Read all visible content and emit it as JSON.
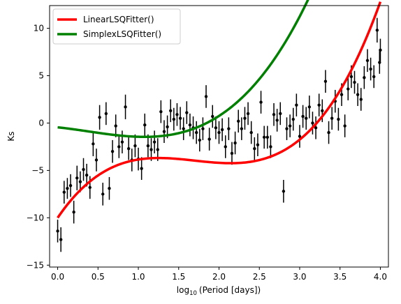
{
  "chart_data": {
    "type": "scatter",
    "xlabel_prefix": "log",
    "xlabel_sub": "10",
    "xlabel_suffix": "(Period [days])",
    "ylabel": "Ks",
    "xlim": [
      -0.1,
      4.1
    ],
    "ylim": [
      -15.2,
      12.4
    ],
    "xticks": [
      0.0,
      0.5,
      1.0,
      1.5,
      2.0,
      2.5,
      3.0,
      3.5,
      4.0
    ],
    "xtick_labels": [
      "0.0",
      "0.5",
      "1.0",
      "1.5",
      "2.0",
      "2.5",
      "3.0",
      "3.5",
      "4.0"
    ],
    "yticks": [
      -15,
      -10,
      -5,
      0,
      5,
      10
    ],
    "ytick_labels": [
      "−15",
      "−10",
      "−5",
      "0",
      "5",
      "10"
    ],
    "grid": false,
    "legend_position": "top-left",
    "points": [
      [
        0.0,
        -11.4,
        1.2
      ],
      [
        0.04,
        -12.3,
        1.3
      ],
      [
        0.08,
        -7.3,
        1.2
      ],
      [
        0.12,
        -6.9,
        1.1
      ],
      [
        0.16,
        -6.6,
        1.2
      ],
      [
        0.2,
        -9.4,
        1.2
      ],
      [
        0.24,
        -5.8,
        1.3
      ],
      [
        0.28,
        -6.2,
        1.1
      ],
      [
        0.32,
        -4.9,
        1.2
      ],
      [
        0.36,
        -5.5,
        1.2
      ],
      [
        0.4,
        -6.8,
        1.2
      ],
      [
        0.44,
        -2.2,
        1.3
      ],
      [
        0.48,
        -3.9,
        1.2
      ],
      [
        0.52,
        0.6,
        1.3
      ],
      [
        0.56,
        -7.5,
        1.2
      ],
      [
        0.6,
        1.0,
        1.2
      ],
      [
        0.64,
        -6.9,
        1.2
      ],
      [
        0.68,
        -3.0,
        1.2
      ],
      [
        0.72,
        -0.3,
        1.2
      ],
      [
        0.76,
        -2.5,
        1.2
      ],
      [
        0.8,
        -2.0,
        1.2
      ],
      [
        0.84,
        1.7,
        1.3
      ],
      [
        0.88,
        -2.7,
        1.2
      ],
      [
        0.92,
        -3.9,
        1.2
      ],
      [
        0.96,
        -2.4,
        1.2
      ],
      [
        1.0,
        -3.8,
        1.2
      ],
      [
        1.04,
        -4.8,
        1.2
      ],
      [
        1.08,
        -0.2,
        1.2
      ],
      [
        1.12,
        -2.4,
        1.2
      ],
      [
        1.16,
        -2.8,
        1.2
      ],
      [
        1.2,
        -2.0,
        1.2
      ],
      [
        1.24,
        -2.8,
        1.2
      ],
      [
        1.28,
        1.2,
        1.2
      ],
      [
        1.32,
        -0.9,
        1.2
      ],
      [
        1.36,
        -0.4,
        1.2
      ],
      [
        1.4,
        1.3,
        1.2
      ],
      [
        1.44,
        0.4,
        1.2
      ],
      [
        1.48,
        0.9,
        1.2
      ],
      [
        1.52,
        0.5,
        1.2
      ],
      [
        1.56,
        -0.6,
        1.2
      ],
      [
        1.6,
        1.1,
        1.2
      ],
      [
        1.64,
        -0.2,
        1.2
      ],
      [
        1.68,
        -0.5,
        1.2
      ],
      [
        1.72,
        -1.0,
        1.2
      ],
      [
        1.76,
        -1.8,
        1.2
      ],
      [
        1.8,
        -0.6,
        1.2
      ],
      [
        1.84,
        2.8,
        1.2
      ],
      [
        1.88,
        -1.7,
        1.2
      ],
      [
        1.92,
        0.7,
        1.2
      ],
      [
        1.96,
        -0.5,
        1.2
      ],
      [
        2.0,
        -1.0,
        1.2
      ],
      [
        2.04,
        -0.7,
        1.2
      ],
      [
        2.08,
        -2.5,
        1.2
      ],
      [
        2.12,
        -0.6,
        1.2
      ],
      [
        2.16,
        -3.2,
        1.2
      ],
      [
        2.2,
        -2.1,
        1.2
      ],
      [
        2.24,
        0.2,
        1.2
      ],
      [
        2.28,
        -0.6,
        1.2
      ],
      [
        2.32,
        0.5,
        1.2
      ],
      [
        2.36,
        1.0,
        1.2
      ],
      [
        2.4,
        -1.0,
        1.2
      ],
      [
        2.44,
        -2.7,
        1.2
      ],
      [
        2.48,
        -2.3,
        1.2
      ],
      [
        2.52,
        2.2,
        1.2
      ],
      [
        2.56,
        -1.5,
        1.2
      ],
      [
        2.6,
        -1.5,
        1.2
      ],
      [
        2.64,
        -2.5,
        1.2
      ],
      [
        2.68,
        0.9,
        1.2
      ],
      [
        2.72,
        0.3,
        1.2
      ],
      [
        2.76,
        1.0,
        1.2
      ],
      [
        2.8,
        -7.2,
        1.2
      ],
      [
        2.84,
        -0.6,
        1.2
      ],
      [
        2.88,
        -0.3,
        1.2
      ],
      [
        2.92,
        0.4,
        1.2
      ],
      [
        2.96,
        1.9,
        1.2
      ],
      [
        3.0,
        -1.4,
        1.2
      ],
      [
        3.04,
        0.7,
        1.2
      ],
      [
        3.08,
        0.5,
        1.2
      ],
      [
        3.12,
        1.7,
        1.2
      ],
      [
        3.16,
        0.0,
        1.2
      ],
      [
        3.2,
        -0.5,
        1.2
      ],
      [
        3.24,
        1.9,
        1.2
      ],
      [
        3.28,
        1.3,
        1.2
      ],
      [
        3.32,
        4.4,
        1.2
      ],
      [
        3.36,
        -1.0,
        1.2
      ],
      [
        3.4,
        0.5,
        1.2
      ],
      [
        3.44,
        2.3,
        1.2
      ],
      [
        3.48,
        0.4,
        1.2
      ],
      [
        3.52,
        3.0,
        1.2
      ],
      [
        3.56,
        -0.3,
        1.2
      ],
      [
        3.6,
        3.6,
        1.2
      ],
      [
        3.64,
        4.9,
        1.2
      ],
      [
        3.68,
        4.3,
        1.2
      ],
      [
        3.72,
        3.0,
        1.2
      ],
      [
        3.76,
        2.5,
        1.2
      ],
      [
        3.8,
        4.8,
        1.2
      ],
      [
        3.84,
        6.6,
        1.2
      ],
      [
        3.88,
        5.7,
        1.2
      ],
      [
        3.92,
        4.9,
        1.2
      ],
      [
        3.96,
        9.8,
        1.3
      ],
      [
        3.99,
        6.4,
        1.2
      ],
      [
        4.0,
        7.7,
        1.2
      ]
    ],
    "series": [
      {
        "name": "LinearLSQFitter()",
        "color": "#ff0000",
        "coeffs": [
          -10.0,
          12.5,
          -7.9,
          1.55
        ]
      },
      {
        "name": "SimplexLSQFitter()",
        "color": "#008000",
        "coeffs": [
          -0.45,
          -0.9,
          -0.95,
          0.85
        ]
      }
    ],
    "marker_color": "#000000"
  }
}
